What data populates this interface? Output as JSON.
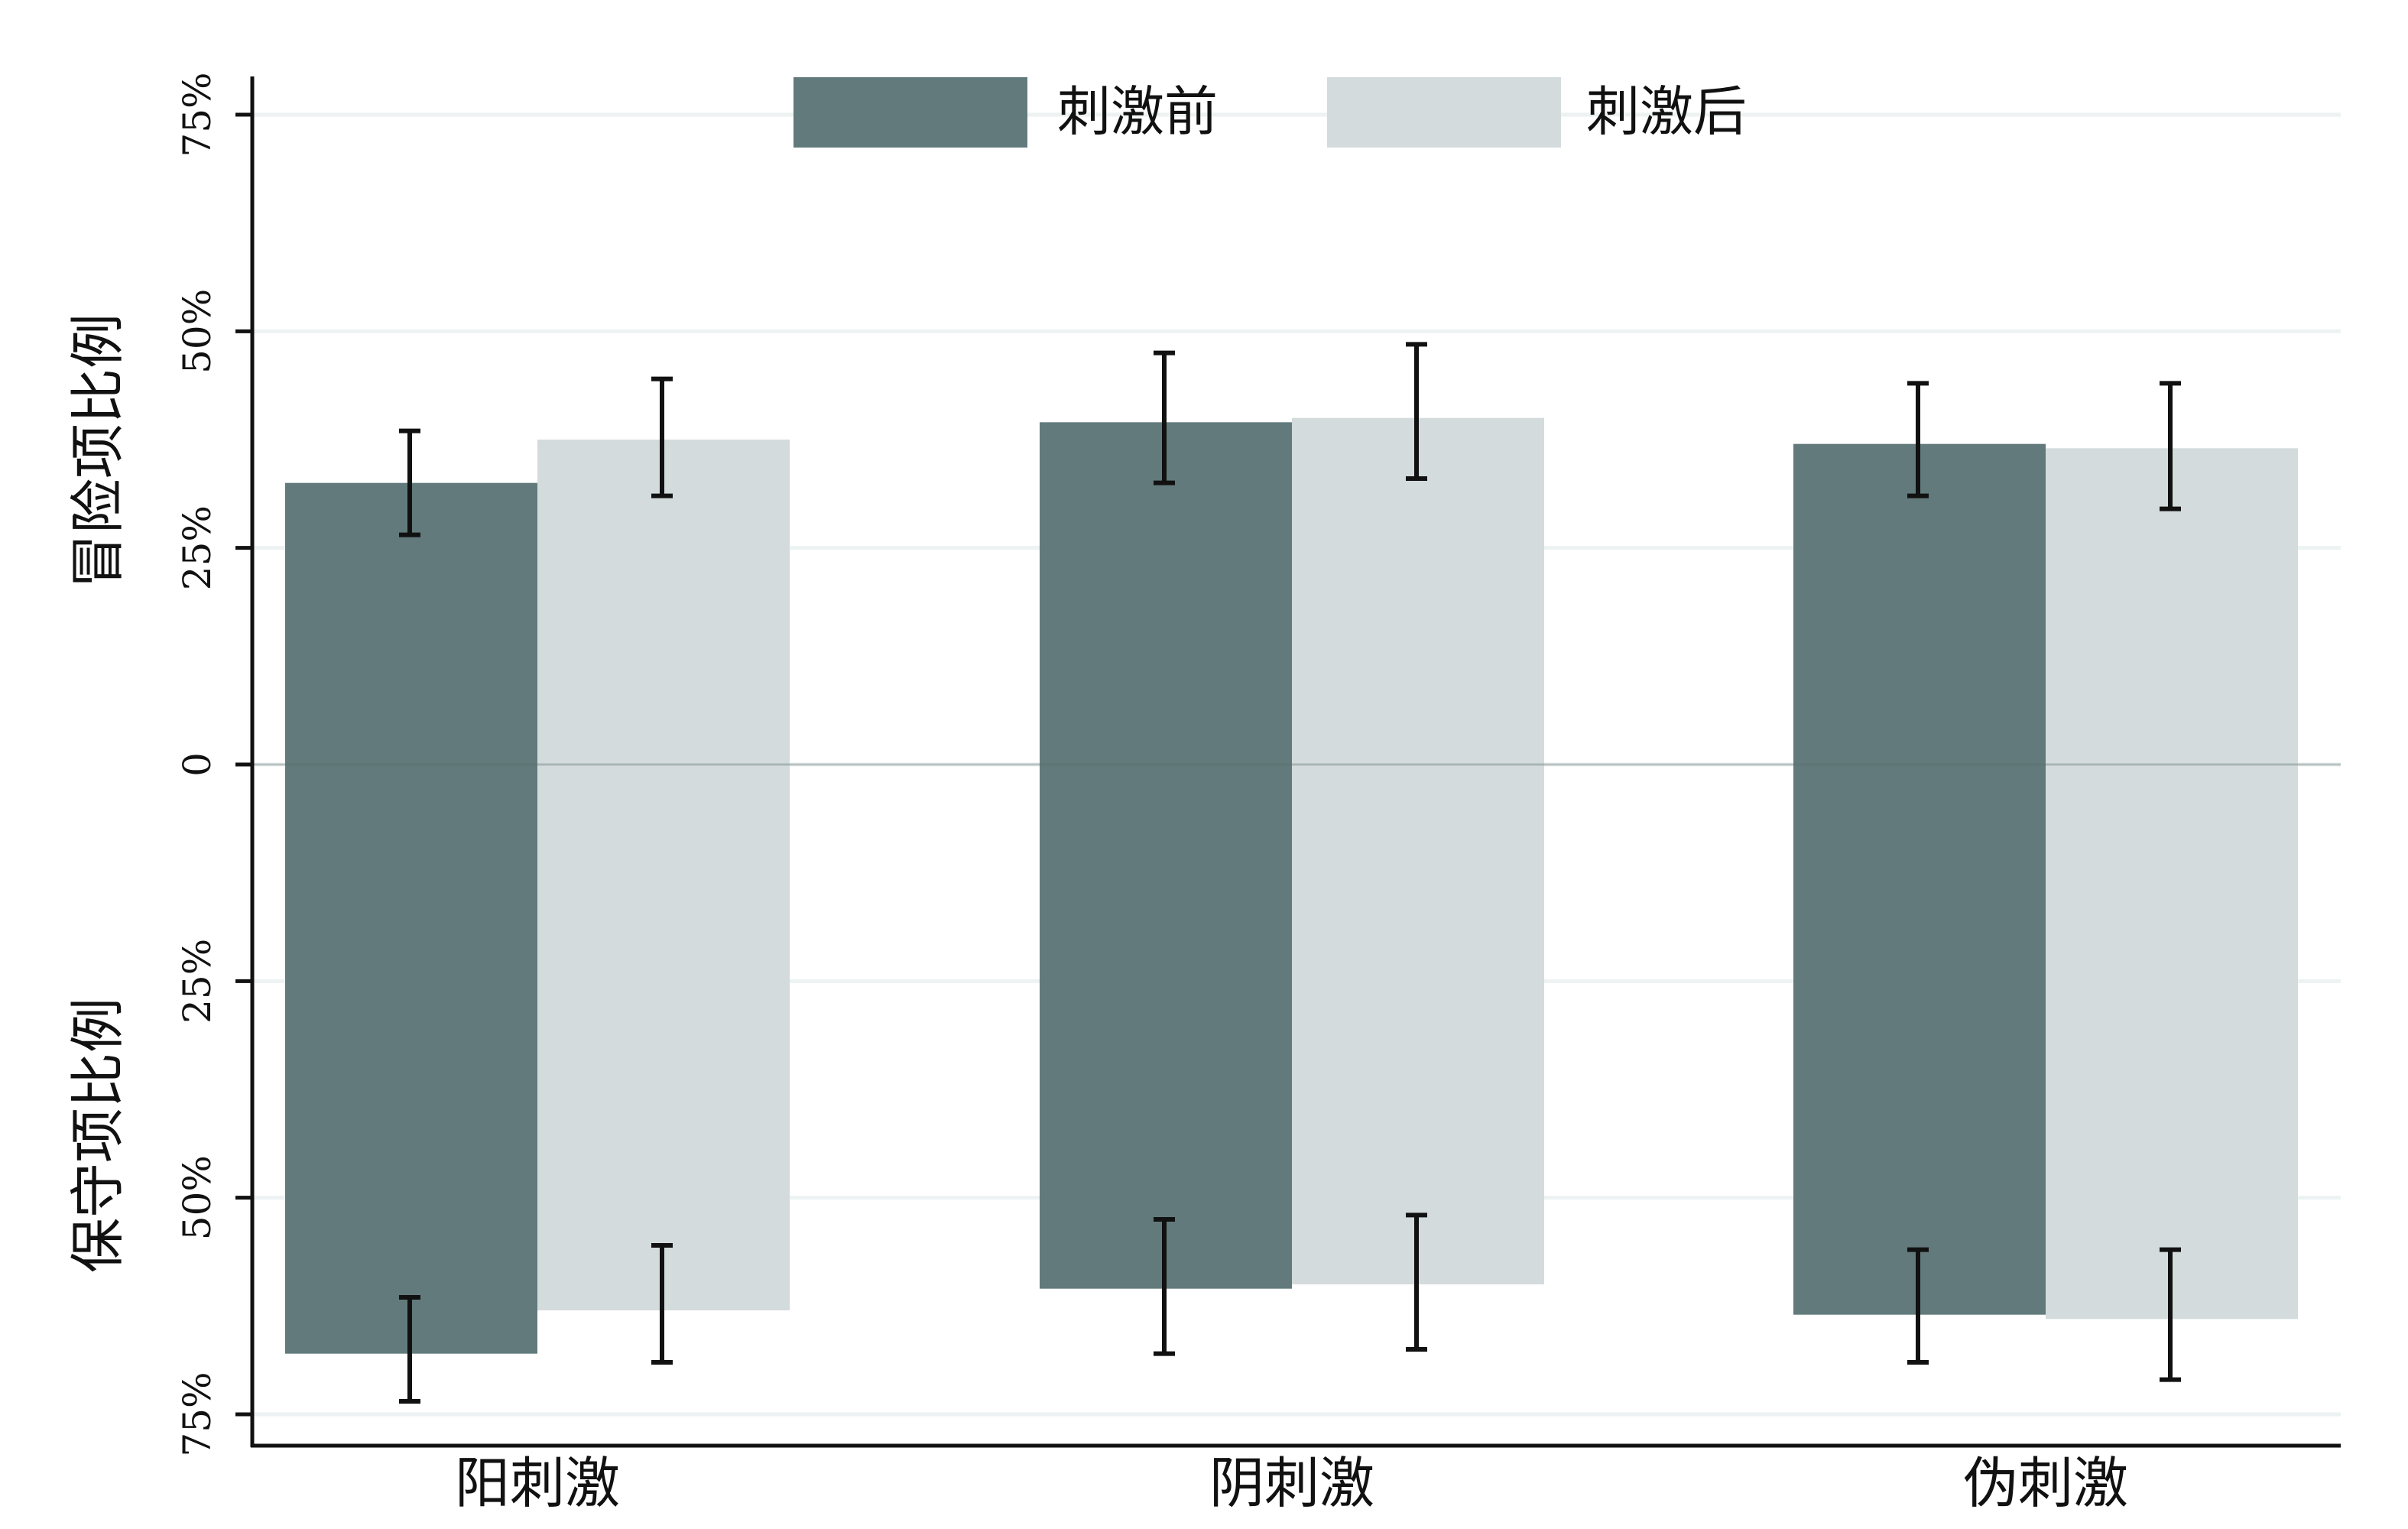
{
  "chart_data": {
    "type": "bar",
    "categories": [
      "阳刺激",
      "阴刺激",
      "伪刺激"
    ],
    "series": [
      {
        "name": "刺激前",
        "color": "#627a7b",
        "values": [
          {
            "risky": 32.5,
            "risky_err": [
              26.5,
              38.5
            ],
            "conservative": 68,
            "conservative_err": [
              61.5,
              73.5
            ]
          },
          {
            "risky": 39.5,
            "risky_err": [
              32.5,
              47.5
            ],
            "conservative": 60.5,
            "conservative_err": [
              52.5,
              68
            ]
          },
          {
            "risky": 37,
            "risky_err": [
              31,
              44
            ],
            "conservative": 63.5,
            "conservative_err": [
              56,
              69
            ]
          }
        ]
      },
      {
        "name": "刺激后",
        "color": "#d3dbdc",
        "values": [
          {
            "risky": 37.5,
            "risky_err": [
              31,
              44.5
            ],
            "conservative": 63,
            "conservative_err": [
              55.5,
              69
            ]
          },
          {
            "risky": 40,
            "risky_err": [
              33,
              48.5
            ],
            "conservative": 60,
            "conservative_err": [
              52,
              67.5
            ]
          },
          {
            "risky": 36.5,
            "risky_err": [
              29.5,
              44
            ],
            "conservative": 64,
            "conservative_err": [
              56,
              71
            ]
          }
        ]
      }
    ],
    "y_axis": {
      "ticks": [
        "75%",
        "50%",
        "25%",
        "0",
        "25%",
        "50%",
        "75%"
      ],
      "tick_values": [
        75,
        50,
        25,
        0,
        -25,
        -50,
        -75
      ],
      "range": [
        -75,
        75
      ],
      "upper_label": "冒险项比例",
      "lower_label": "保守项比例"
    },
    "grid": true,
    "legend_position": "top-center"
  }
}
